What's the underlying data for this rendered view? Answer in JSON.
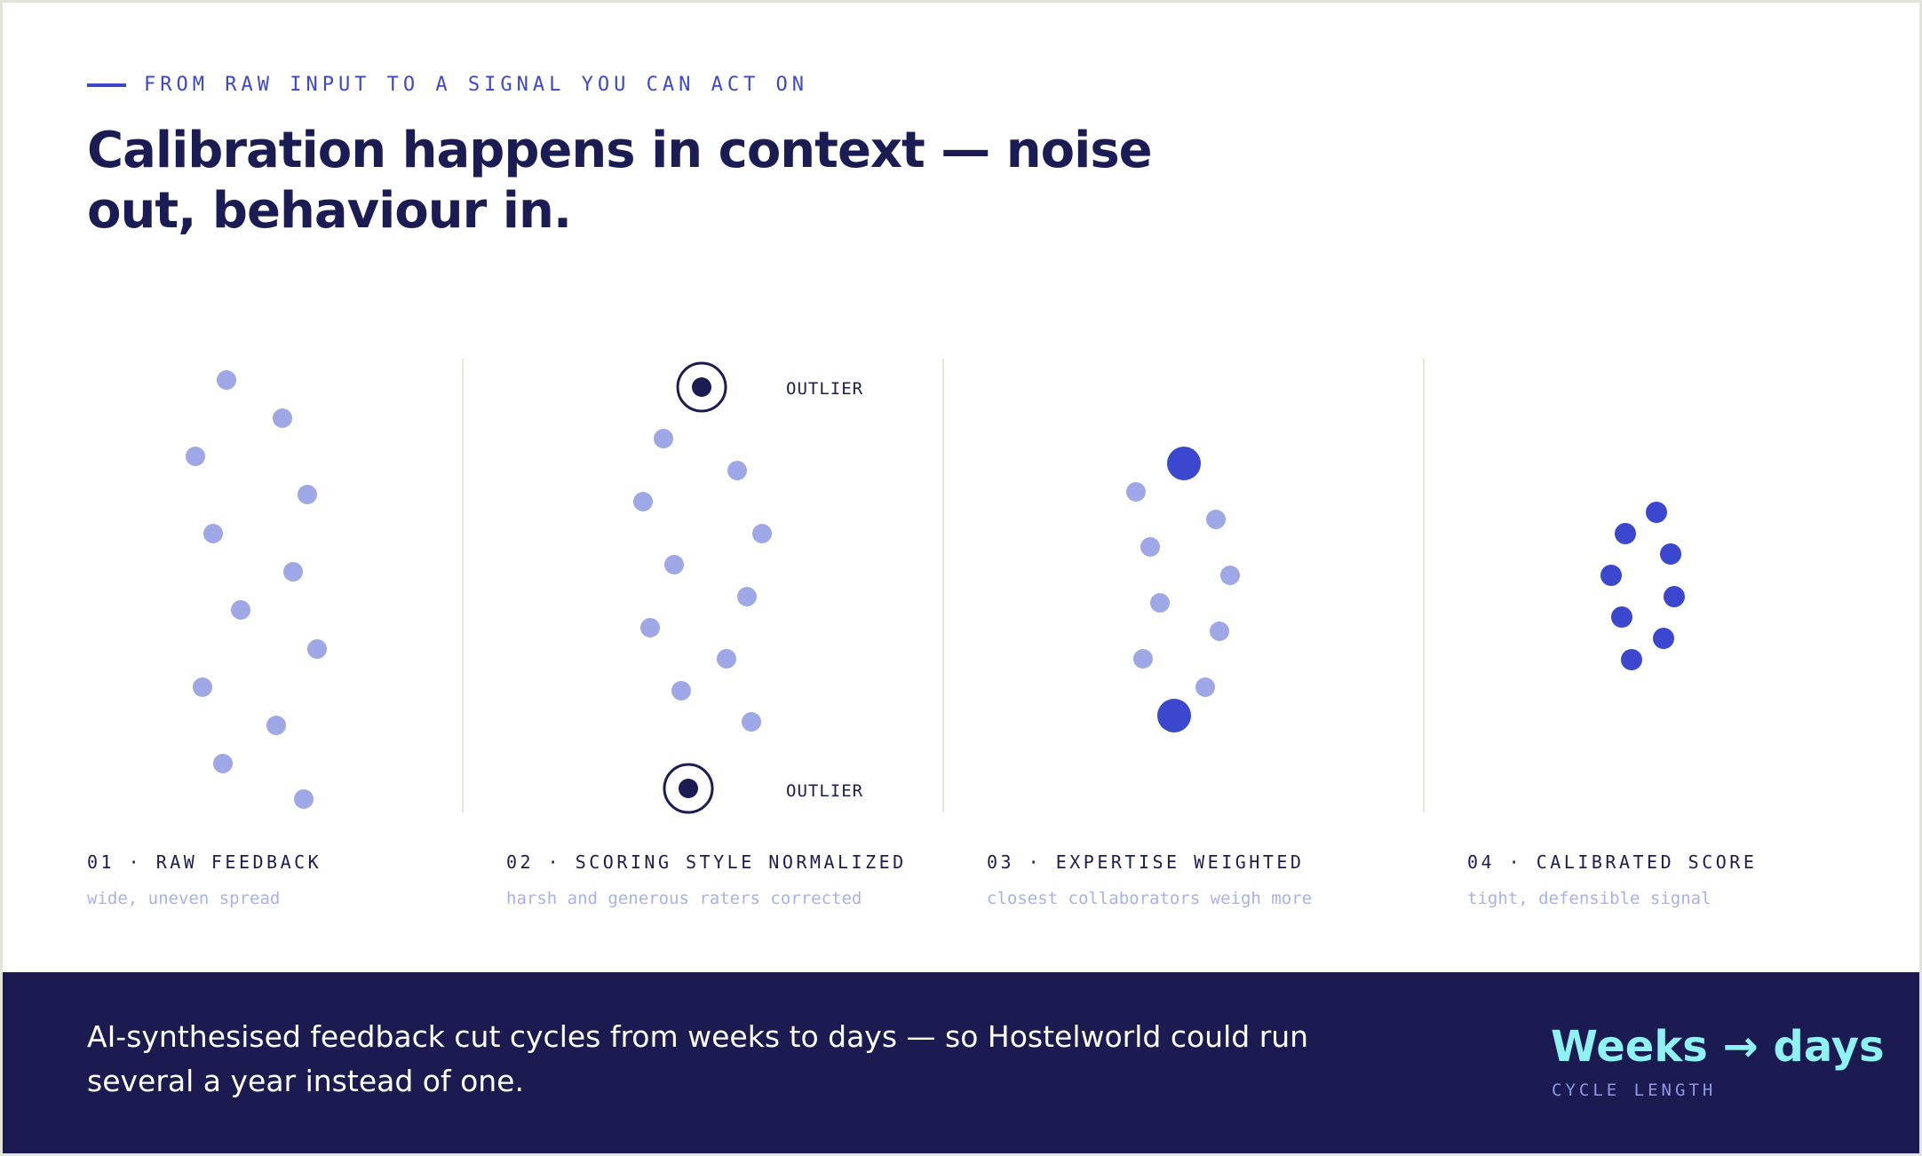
{
  "eyebrow": "FROM RAW INPUT TO A SIGNAL YOU CAN ACT ON",
  "title": "Calibration happens in context — noise out, behaviour in.",
  "stages": [
    {
      "label": "01 · RAW FEEDBACK",
      "caption": "wide, uneven spread"
    },
    {
      "label": "02 · SCORING STYLE NORMALIZED",
      "caption": "harsh and generous raters corrected"
    },
    {
      "label": "03 · EXPERTISE WEIGHTED",
      "caption": "closest collaborators weigh more"
    },
    {
      "label": "04 · CALIBRATED SCORE",
      "caption": "tight, defensible signal"
    }
  ],
  "outlier_label": "OUTLIER",
  "band": {
    "text": "AI-synthesised feedback cut cycles from weeks to days — so Hostelworld could run several a year instead of one.",
    "stat": "Weeks → days",
    "stat_label": "CYCLE LENGTH"
  },
  "colors": {
    "accent": "#3b47cf",
    "navy": "#1c1c54",
    "light_dot": "#9ea8e6",
    "strong_dot": "#3b47cf",
    "stat": "#8ff2f2"
  }
}
